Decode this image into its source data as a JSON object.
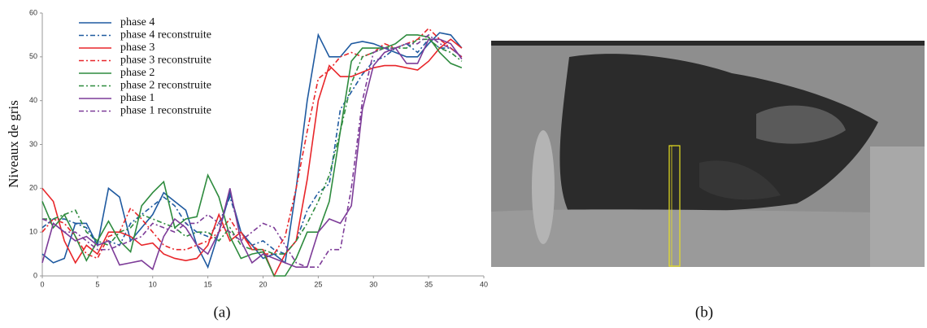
{
  "chart_data": {
    "type": "line",
    "ylabel": "Niveaux de gris",
    "x": [
      0,
      1,
      2,
      3,
      4,
      5,
      6,
      7,
      8,
      9,
      10,
      11,
      12,
      13,
      14,
      15,
      16,
      17,
      18,
      19,
      20,
      21,
      22,
      23,
      24,
      25,
      26,
      27,
      28,
      29,
      30,
      31,
      32,
      33,
      34,
      35,
      36,
      37,
      38
    ],
    "xlim": [
      0,
      40
    ],
    "xticks": [
      0,
      5,
      10,
      15,
      20,
      25,
      30,
      35,
      40
    ],
    "ylim": [
      0,
      60
    ],
    "yticks": [
      0,
      10,
      20,
      30,
      40,
      50,
      60
    ],
    "grid": false,
    "series": [
      {
        "name": "phase 4",
        "color": "#1f5aa0",
        "style": "solid",
        "values": [
          5,
          3,
          4,
          12,
          12,
          7,
          20,
          18,
          8,
          11,
          14,
          19,
          17,
          15,
          7,
          2,
          10,
          19,
          10,
          7,
          4,
          5,
          3,
          20,
          40,
          55,
          50,
          50,
          53,
          53.5,
          53,
          52,
          51,
          50,
          50,
          53,
          55.5,
          55,
          52
        ]
      },
      {
        "name": "phase 4 reconstruite",
        "color": "#1f5aa0",
        "style": "dashdot",
        "values": [
          11,
          13,
          13,
          12,
          11,
          7,
          8,
          7,
          12,
          14,
          16,
          18,
          16,
          12,
          10,
          9,
          12,
          18,
          10,
          7,
          8,
          6,
          5,
          8,
          15,
          19,
          21,
          38,
          42,
          46,
          49,
          50,
          52,
          53,
          51,
          54,
          52,
          52,
          50
        ]
      },
      {
        "name": "phase 3",
        "color": "#e8262a",
        "style": "solid",
        "values": [
          20,
          17,
          8,
          3,
          7,
          5,
          10,
          10,
          9,
          7,
          7.5,
          5,
          4,
          3.5,
          4,
          7,
          14,
          8,
          10,
          6,
          6,
          0,
          5,
          8,
          22,
          40,
          48,
          45.5,
          45.5,
          46.5,
          47.5,
          48,
          48,
          47.5,
          47,
          49,
          52,
          54,
          52
        ]
      },
      {
        "name": "phase 3 reconstruite",
        "color": "#e8262a",
        "style": "dashdot",
        "values": [
          10,
          13,
          12,
          9,
          5,
          4,
          9,
          10,
          15.5,
          13,
          10,
          7,
          6,
          6,
          7,
          8,
          10,
          13,
          9,
          7,
          5,
          5,
          9,
          20,
          33,
          45,
          47,
          50,
          51,
          50,
          51,
          53,
          52,
          53,
          54,
          56.5,
          54,
          52,
          50
        ]
      },
      {
        "name": "phase 2",
        "color": "#2e8b3e",
        "style": "solid",
        "values": [
          17,
          11,
          14,
          9,
          3.5,
          8,
          12.5,
          8,
          5.5,
          16,
          19,
          21.5,
          11,
          13,
          13.5,
          23,
          18,
          9,
          4,
          5,
          5.5,
          0,
          0,
          4,
          10,
          10,
          17,
          33,
          49,
          52,
          52,
          52,
          53,
          55,
          55,
          54.5,
          51,
          48.5,
          47.5
        ]
      },
      {
        "name": "phase 2 reconstruite",
        "color": "#2e8b3e",
        "style": "dashdot",
        "values": [
          13,
          13,
          14,
          15,
          10,
          8,
          7,
          10,
          11,
          14,
          13,
          12,
          11,
          9,
          10,
          10,
          8,
          11,
          7,
          6,
          6,
          5,
          5,
          8,
          12,
          17,
          23,
          33,
          44,
          50,
          51,
          52,
          52,
          52,
          54,
          54,
          52,
          51,
          49
        ]
      },
      {
        "name": "phase 1",
        "color": "#7d3c98",
        "style": "solid",
        "values": [
          3,
          12,
          10,
          8,
          9,
          7,
          8,
          2.5,
          3,
          3.5,
          1.5,
          9,
          13,
          11,
          7,
          5,
          10,
          20,
          8,
          3,
          5,
          4,
          3,
          2,
          2,
          10,
          13,
          12,
          16,
          38,
          48,
          51,
          52,
          48.5,
          48.5,
          54,
          54,
          53,
          49.5
        ]
      },
      {
        "name": "phase 1 reconstruite",
        "color": "#7d3c98",
        "style": "dashdot",
        "values": [
          13,
          12,
          10,
          10,
          8,
          6,
          6,
          7,
          8,
          9,
          12,
          11,
          10,
          12,
          12,
          14,
          12,
          10,
          8,
          10,
          12,
          11,
          7,
          3,
          2,
          2,
          6,
          6,
          20,
          40,
          51,
          52,
          52,
          53,
          53,
          55,
          53,
          52,
          50
        ]
      }
    ]
  },
  "captions": [
    "(a)",
    "(b)"
  ]
}
